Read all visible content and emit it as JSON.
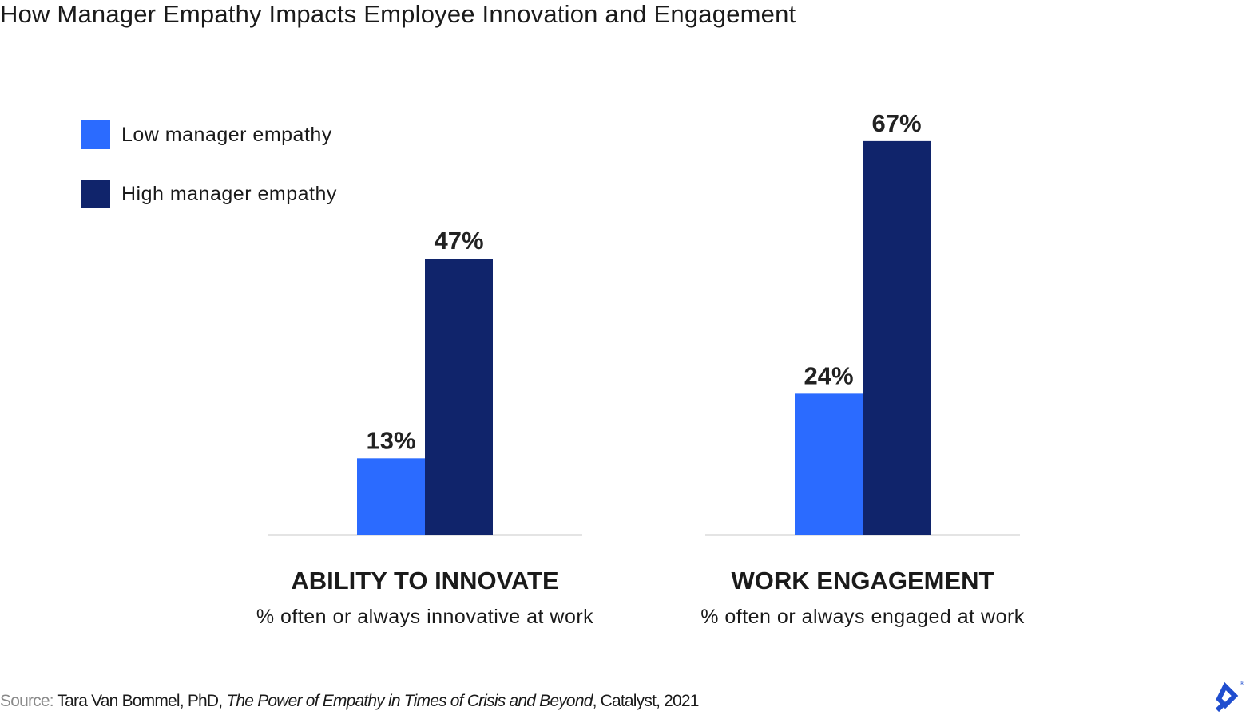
{
  "chart_data": {
    "type": "bar",
    "title": "How Manager Empathy Impacts Employee Innovation and Engagement",
    "categories": [
      "ABILITY TO INNOVATE",
      "WORK ENGAGEMENT"
    ],
    "category_subtitles": [
      "% often or always innovative at work",
      "% often or always engaged at work"
    ],
    "series": [
      {
        "name": "Low manager empathy",
        "values": [
          13,
          24
        ],
        "labels": [
          "13%",
          "24%"
        ],
        "color": "#2b6bff"
      },
      {
        "name": "High manager empathy",
        "values": [
          47,
          67
        ],
        "labels": [
          "47%",
          "67%"
        ],
        "color": "#10246b"
      }
    ],
    "ylim": [
      0,
      70
    ],
    "grid": false,
    "legend": "top-left",
    "axis_color": "#c8c8c8"
  },
  "source": {
    "label": "Source:",
    "author": " Tara Van Bommel, PhD, ",
    "work": "The Power of Empathy in Times of Crisis and Beyond",
    "rest": ", Catalyst, 2021"
  },
  "logo": {
    "icon": "toptal-logo",
    "color": "#204ecf"
  }
}
